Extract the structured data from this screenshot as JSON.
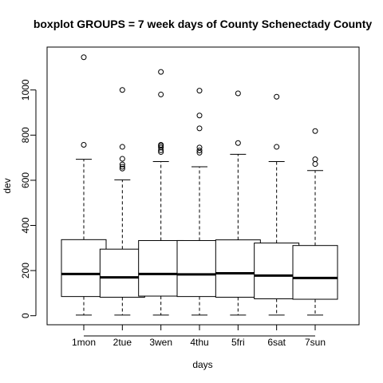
{
  "chart_data": {
    "type": "boxplot",
    "title": "boxplot GROUPS = 7 week days of County Schenectady County",
    "xlabel": "days",
    "ylabel": "dev",
    "ylim": [
      -40,
      1190
    ],
    "yticks": [
      0,
      200,
      400,
      600,
      800,
      1000
    ],
    "categories": [
      "1mon",
      "2tue",
      "3wen",
      "4thu",
      "5fri",
      "6sat",
      "7sun"
    ],
    "boxes": [
      {
        "name": "1mon",
        "whisker_low": 3,
        "q1": 85,
        "median": 185,
        "q3": 337,
        "whisker_high": 693,
        "outliers": [
          757,
          1145
        ]
      },
      {
        "name": "2tue",
        "whisker_low": 3,
        "q1": 82,
        "median": 170,
        "q3": 295,
        "whisker_high": 602,
        "outliers": [
          652,
          660,
          670,
          695,
          748,
          1000
        ]
      },
      {
        "name": "3wen",
        "whisker_low": 3,
        "q1": 87,
        "median": 185,
        "q3": 333,
        "whisker_high": 683,
        "outliers": [
          725,
          733,
          745,
          752,
          757,
          980,
          1080
        ]
      },
      {
        "name": "4thu",
        "whisker_low": 3,
        "q1": 85,
        "median": 183,
        "q3": 333,
        "whisker_high": 660,
        "outliers": [
          722,
          732,
          745,
          830,
          887,
          997
        ]
      },
      {
        "name": "5fri",
        "whisker_low": 3,
        "q1": 82,
        "median": 188,
        "q3": 336,
        "whisker_high": 715,
        "outliers": [
          765,
          985
        ]
      },
      {
        "name": "6sat",
        "whisker_low": 3,
        "q1": 75,
        "median": 178,
        "q3": 322,
        "whisker_high": 683,
        "outliers": [
          748,
          970
        ]
      },
      {
        "name": "7sun",
        "whisker_low": 3,
        "q1": 73,
        "median": 167,
        "q3": 311,
        "whisker_high": 643,
        "outliers": [
          672,
          693,
          818
        ]
      }
    ]
  }
}
